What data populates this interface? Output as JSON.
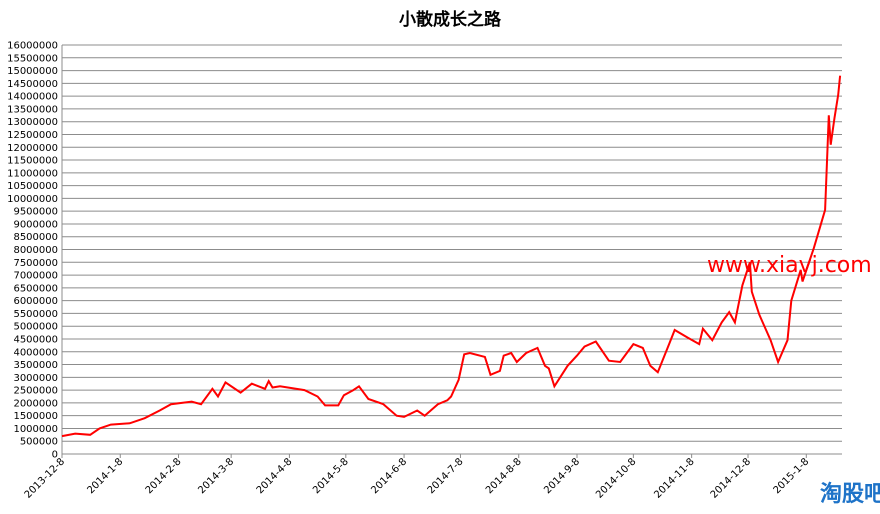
{
  "chart_data": {
    "type": "line",
    "title": "小散成长之路",
    "x": [
      "2013-12-8",
      "2013-12-15",
      "2013-12-23",
      "2013-12-28",
      "2014-1-3",
      "2014-1-13",
      "2014-1-21",
      "2014-1-29",
      "2014-2-4",
      "2014-2-15",
      "2014-2-20",
      "2014-2-26",
      "2014-3-1",
      "2014-3-5",
      "2014-3-13",
      "2014-3-19",
      "2014-3-26",
      "2014-3-28",
      "2014-3-30",
      "2014-4-3",
      "2014-4-16",
      "2014-4-23",
      "2014-4-27",
      "2014-5-4",
      "2014-5-7",
      "2014-5-12",
      "2014-5-15",
      "2014-5-20",
      "2014-5-28",
      "2014-6-4",
      "2014-6-8",
      "2014-6-15",
      "2014-6-19",
      "2014-6-26",
      "2014-7-1",
      "2014-7-3",
      "2014-7-7",
      "2014-7-10",
      "2014-7-13",
      "2014-7-21",
      "2014-7-24",
      "2014-7-29",
      "2014-7-31",
      "2014-8-4",
      "2014-8-7",
      "2014-8-12",
      "2014-8-18",
      "2014-8-22",
      "2014-8-24",
      "2014-8-27",
      "2014-9-3",
      "2014-9-8",
      "2014-9-12",
      "2014-9-18",
      "2014-9-25",
      "2014-10-1",
      "2014-10-8",
      "2014-10-13",
      "2014-10-17",
      "2014-10-21",
      "2014-10-27",
      "2014-10-30",
      "2014-11-6",
      "2014-11-12",
      "2014-11-14",
      "2014-11-19",
      "2014-11-24",
      "2014-11-28",
      "2014-12-1",
      "2014-12-5",
      "2014-12-9",
      "2014-12-10",
      "2014-12-14",
      "2014-12-20",
      "2014-12-24",
      "2014-12-29",
      "2014-12-31",
      "2015-1-5",
      "2015-1-6",
      "2015-1-12",
      "2015-1-18",
      "2015-1-20",
      "2015-1-21",
      "2015-1-23",
      "2015-1-25",
      "2015-1-26"
    ],
    "series": [
      {
        "color": "#ff0000",
        "values": [
          700000,
          800000,
          750000,
          1000000,
          1150000,
          1200000,
          1400000,
          1700000,
          1950000,
          2050000,
          1950000,
          2550000,
          2250000,
          2800000,
          2400000,
          2750000,
          2550000,
          2850000,
          2600000,
          2650000,
          2500000,
          2250000,
          1900000,
          1900000,
          2300000,
          2500000,
          2650000,
          2150000,
          1950000,
          1500000,
          1450000,
          1700000,
          1500000,
          1950000,
          2100000,
          2250000,
          2900000,
          3900000,
          3950000,
          3800000,
          3100000,
          3250000,
          3850000,
          3950000,
          3600000,
          3950000,
          4150000,
          3450000,
          3350000,
          2650000,
          3450000,
          3850000,
          4200000,
          4400000,
          3650000,
          3600000,
          4300000,
          4150000,
          3450000,
          3200000,
          4300000,
          4850000,
          4550000,
          4300000,
          4900000,
          4450000,
          5150000,
          5550000,
          5150000,
          6600000,
          7500000,
          6350000,
          5450000,
          4450000,
          3600000,
          4450000,
          6000000,
          7200000,
          6750000,
          8050000,
          9550000,
          13250000,
          12100000,
          13150000,
          14050000,
          14800000
        ]
      }
    ],
    "xlim": [
      "2013-12-8",
      "2015-1-27"
    ],
    "xticks": [
      "2013-12-8",
      "2014-1-8",
      "2014-2-8",
      "2014-3-8",
      "2014-4-8",
      "2014-5-8",
      "2014-6-8",
      "2014-7-8",
      "2014-8-8",
      "2014-9-8",
      "2014-10-8",
      "2014-11-8",
      "2014-12-8",
      "2015-1-8"
    ],
    "ylim": [
      0,
      16000000
    ],
    "yticks": [
      0,
      500000,
      1000000,
      1500000,
      2000000,
      2500000,
      3000000,
      3500000,
      4000000,
      4500000,
      5000000,
      5500000,
      6000000,
      6500000,
      7000000,
      7500000,
      8000000,
      8500000,
      9000000,
      9500000,
      10000000,
      10500000,
      11000000,
      11500000,
      12000000,
      12500000,
      13000000,
      13500000,
      14000000,
      14500000,
      15000000,
      15500000,
      16000000
    ],
    "grid": true,
    "annotations": [
      "www.xiavj.com",
      "淘股吧"
    ]
  }
}
